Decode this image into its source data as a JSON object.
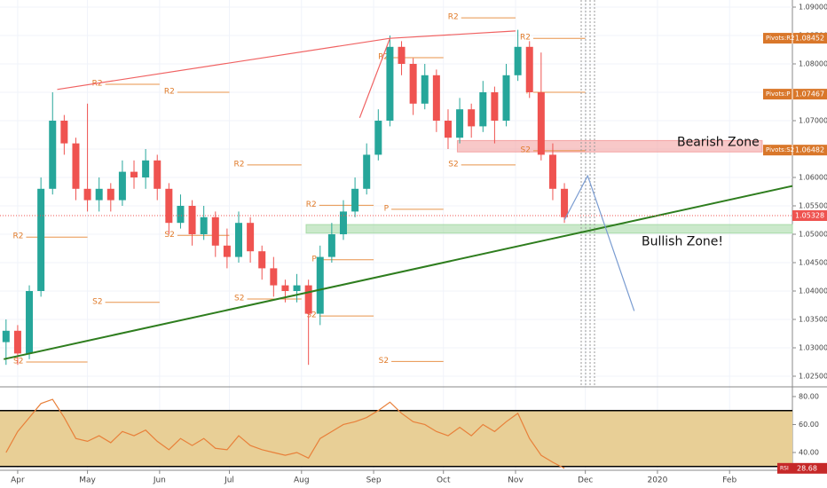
{
  "chart_data": [
    {
      "type": "candlestick",
      "xlim": [
        -7.6,
        333
      ],
      "ylim": [
        1.02328,
        1.09125
      ],
      "yticks": [
        {
          "value": 1.025,
          "label": "1.02500"
        },
        {
          "value": 1.03,
          "label": "1.03000"
        },
        {
          "value": 1.035,
          "label": "1.03500"
        },
        {
          "value": 1.04,
          "label": "1.04000"
        },
        {
          "value": 1.045,
          "label": "1.04500"
        },
        {
          "value": 1.05,
          "label": "1.05000"
        },
        {
          "value": 1.055,
          "label": "1.05500"
        },
        {
          "value": 1.06,
          "label": "1.06000"
        },
        {
          "value": 1.065,
          "label": "1.06500"
        },
        {
          "value": 1.07,
          "label": "1.07000"
        },
        {
          "value": 1.075,
          "label": "1.07500"
        },
        {
          "value": 1.08,
          "label": "1.08000"
        },
        {
          "value": 1.085,
          "label": "1.08500"
        },
        {
          "value": 1.09,
          "label": "1.09000"
        }
      ],
      "up_color": "#26a69a",
      "down_color": "#ef5350",
      "x": [
        -5,
        0,
        5,
        10,
        15,
        20,
        25,
        30,
        35,
        40,
        45,
        50,
        55,
        60,
        65,
        70,
        75,
        80,
        85,
        90,
        95,
        100,
        105,
        110,
        115,
        120,
        125,
        130,
        135,
        140,
        145,
        150,
        155,
        160,
        165,
        170,
        175,
        180,
        185,
        190,
        195,
        200,
        205,
        210,
        215,
        220,
        225,
        230,
        235
      ],
      "open": [
        1.031,
        1.033,
        1.029,
        1.04,
        1.058,
        1.07,
        1.066,
        1.058,
        1.056,
        1.058,
        1.056,
        1.061,
        1.06,
        1.063,
        1.058,
        1.052,
        1.055,
        1.05,
        1.053,
        1.048,
        1.046,
        1.052,
        1.047,
        1.044,
        1.041,
        1.04,
        1.041,
        1.036,
        1.046,
        1.05,
        1.054,
        1.058,
        1.064,
        1.07,
        1.083,
        1.08,
        1.073,
        1.078,
        1.07,
        1.067,
        1.072,
        1.069,
        1.075,
        1.07,
        1.078,
        1.083,
        1.075,
        1.064,
        1.058
      ],
      "high": [
        1.035,
        1.034,
        1.041,
        1.06,
        1.075,
        1.071,
        1.067,
        1.073,
        1.06,
        1.059,
        1.063,
        1.063,
        1.065,
        1.064,
        1.059,
        1.057,
        1.056,
        1.055,
        1.054,
        1.051,
        1.054,
        1.053,
        1.048,
        1.046,
        1.042,
        1.043,
        1.042,
        1.048,
        1.052,
        1.056,
        1.06,
        1.066,
        1.072,
        1.085,
        1.084,
        1.081,
        1.08,
        1.079,
        1.072,
        1.074,
        1.073,
        1.077,
        1.076,
        1.08,
        1.086,
        1.084,
        1.082,
        1.066,
        1.059
      ],
      "low": [
        1.027,
        1.027,
        1.028,
        1.039,
        1.057,
        1.064,
        1.056,
        1.054,
        1.054,
        1.054,
        1.055,
        1.058,
        1.058,
        1.056,
        1.05,
        1.051,
        1.048,
        1.049,
        1.046,
        1.044,
        1.045,
        1.045,
        1.042,
        1.039,
        1.038,
        1.038,
        1.027,
        1.034,
        1.045,
        1.049,
        1.053,
        1.057,
        1.063,
        1.069,
        1.078,
        1.071,
        1.072,
        1.068,
        1.065,
        1.066,
        1.067,
        1.068,
        1.066,
        1.069,
        1.077,
        1.074,
        1.063,
        1.056,
        1.052
      ],
      "close": [
        1.033,
        1.029,
        1.04,
        1.058,
        1.07,
        1.066,
        1.058,
        1.056,
        1.058,
        1.056,
        1.061,
        1.06,
        1.063,
        1.058,
        1.052,
        1.055,
        1.05,
        1.053,
        1.048,
        1.046,
        1.052,
        1.047,
        1.044,
        1.041,
        1.04,
        1.041,
        1.036,
        1.046,
        1.05,
        1.054,
        1.058,
        1.064,
        1.07,
        1.083,
        1.08,
        1.073,
        1.078,
        1.07,
        1.067,
        1.072,
        1.069,
        1.075,
        1.07,
        1.078,
        1.083,
        1.075,
        1.064,
        1.058,
        1.053
      ],
      "pivots": [
        {
          "label": "R2",
          "x": [
            -4,
            30
          ],
          "value": 1.0495
        },
        {
          "label": "S2",
          "x": [
            -4,
            30
          ],
          "value": 1.0275
        },
        {
          "label": "R2",
          "x": [
            30,
            61
          ],
          "value": 1.0764
        },
        {
          "label": "S2",
          "x": [
            30,
            61
          ],
          "value": 1.038
        },
        {
          "label": "R2",
          "x": [
            61,
            91
          ],
          "value": 1.075
        },
        {
          "label": "S2",
          "x": [
            61,
            91
          ],
          "value": 1.0498
        },
        {
          "label": "R2",
          "x": [
            91,
            122
          ],
          "value": 1.0622
        },
        {
          "label": "S2",
          "x": [
            91,
            122
          ],
          "value": 1.0386
        },
        {
          "label": "R2",
          "x": [
            122,
            153
          ],
          "value": 1.0551
        },
        {
          "label": "P",
          "x": [
            122,
            153
          ],
          "value": 1.0455
        },
        {
          "label": "S2",
          "x": [
            122,
            153
          ],
          "value": 1.0356
        },
        {
          "label": "R2",
          "x": [
            153,
            183
          ],
          "value": 1.0811
        },
        {
          "label": "P",
          "x": [
            153,
            183
          ],
          "value": 1.0544
        },
        {
          "label": "S2",
          "x": [
            153,
            183
          ],
          "value": 1.0276
        },
        {
          "label": "R2",
          "x": [
            183,
            214
          ],
          "value": 1.0881
        },
        {
          "label": "S2",
          "x": [
            183,
            214
          ],
          "value": 1.0622
        },
        {
          "label": "R2",
          "x": [
            214,
            244
          ],
          "value": 1.0845
        },
        {
          "label": "P",
          "x": [
            214,
            244
          ],
          "value": 1.075
        },
        {
          "label": "S2",
          "x": [
            214,
            244
          ],
          "value": 1.0647
        }
      ],
      "zones": [
        {
          "label": "Bearish Zone",
          "x": [
            189,
            320
          ],
          "y": [
            1.0645,
            1.0665
          ],
          "color": "#f4a3a3"
        },
        {
          "label": "Bullish Zone!",
          "x": [
            124,
            333
          ],
          "y": [
            1.0502,
            1.0517
          ],
          "color": "#a9dba9"
        }
      ],
      "lines": [
        {
          "color": "#2e7d1e",
          "x": [
            -6,
            333
          ],
          "y": [
            1.028,
            1.0585
          ]
        },
        {
          "color": "#f06262",
          "x": [
            17,
            160,
            214
          ],
          "y": [
            1.0755,
            1.0845,
            1.0858
          ]
        },
        {
          "color": "#f06262",
          "x": [
            147,
            160
          ],
          "y": [
            1.0705,
            1.0845
          ]
        },
        {
          "color": "#7a9cd1",
          "x": [
            235,
            245,
            265
          ],
          "y": [
            1.0525,
            1.0603,
            1.0365
          ]
        }
      ],
      "price_tags": [
        {
          "label": "Pivots:R2",
          "value": 1.08452
        },
        {
          "label": "Pivots:P",
          "value": 1.07467
        },
        {
          "label": "Pivots:S2",
          "value": 1.06482
        }
      ],
      "last_price": 1.05328
    },
    {
      "type": "line",
      "xlim": [
        -7.6,
        333
      ],
      "ylim": [
        27.3,
        86.3
      ],
      "xticks": [
        {
          "value": 0,
          "label": "Apr"
        },
        {
          "value": 30,
          "label": "May"
        },
        {
          "value": 61,
          "label": "Jun"
        },
        {
          "value": 91,
          "label": "Jul"
        },
        {
          "value": 122,
          "label": "Aug"
        },
        {
          "value": 153,
          "label": "Sep"
        },
        {
          "value": 183,
          "label": "Oct"
        },
        {
          "value": 214,
          "label": "Nov"
        },
        {
          "value": 244,
          "label": "Dec"
        },
        {
          "value": 275,
          "label": "2020"
        },
        {
          "value": 306,
          "label": "Feb"
        }
      ],
      "yticks": [
        {
          "value": 80,
          "label": "80.00"
        },
        {
          "value": 60,
          "label": "60.00"
        },
        {
          "value": 40,
          "label": "40.00"
        }
      ],
      "levels": [
        70,
        30
      ],
      "band_color": "#e8cf96",
      "color": "#e8803a",
      "x": [
        -5,
        0,
        5,
        10,
        15,
        20,
        25,
        30,
        35,
        40,
        45,
        50,
        55,
        60,
        65,
        70,
        75,
        80,
        85,
        90,
        95,
        100,
        105,
        110,
        115,
        120,
        125,
        130,
        135,
        140,
        145,
        150,
        155,
        160,
        165,
        170,
        175,
        180,
        185,
        190,
        195,
        200,
        205,
        210,
        215,
        220,
        225,
        230,
        235
      ],
      "values": [
        40,
        55,
        65,
        75,
        78,
        65,
        50,
        48,
        52,
        47,
        55,
        52,
        56,
        48,
        42,
        50,
        45,
        50,
        43,
        42,
        52,
        45,
        42,
        40,
        38,
        40,
        36,
        50,
        55,
        60,
        62,
        65,
        70,
        76,
        68,
        62,
        60,
        55,
        52,
        58,
        52,
        60,
        55,
        62,
        68,
        50,
        38,
        33,
        28.68
      ],
      "last_label": "RSI",
      "last_value": 28.68
    }
  ]
}
